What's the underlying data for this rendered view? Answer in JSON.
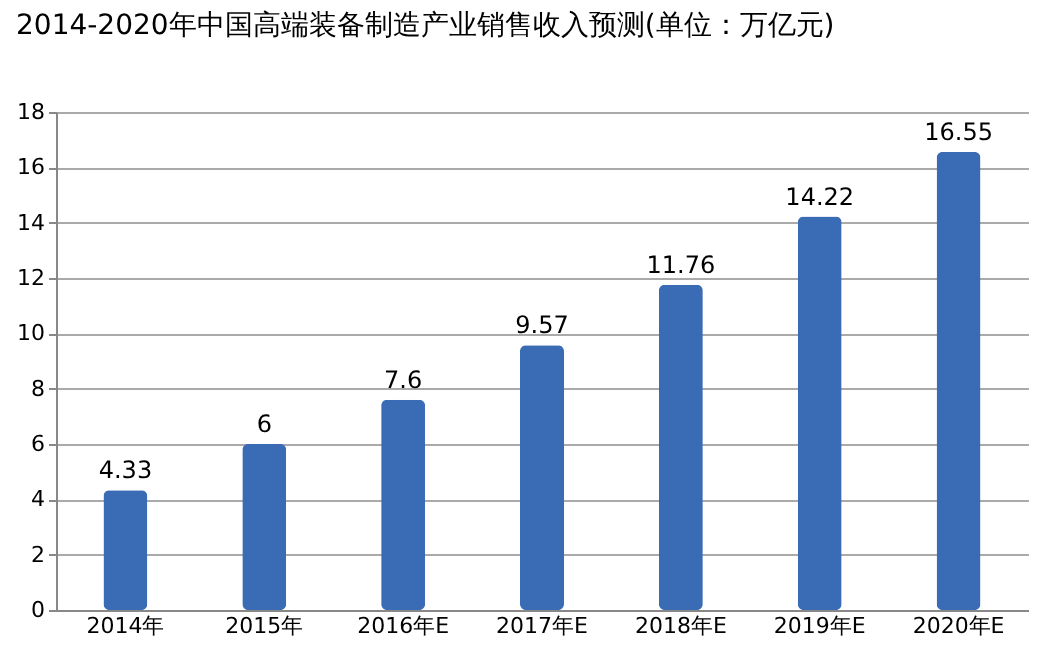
{
  "chart_data": {
    "type": "bar",
    "title": "2014-2020年中国高端装备制造产业销售收入预测(单位：万亿元)",
    "categories": [
      "2014年",
      "2015年",
      "2016年E",
      "2017年E",
      "2018年E",
      "2019年E",
      "2020年E"
    ],
    "values": [
      4.33,
      6,
      7.6,
      9.57,
      11.76,
      14.22,
      16.55
    ],
    "color": "#3a6cb5",
    "ylim": [
      0,
      18
    ],
    "yticks": [
      0,
      2,
      4,
      6,
      8,
      10,
      12,
      14,
      16,
      18
    ],
    "grid": true,
    "data_labels": true
  }
}
